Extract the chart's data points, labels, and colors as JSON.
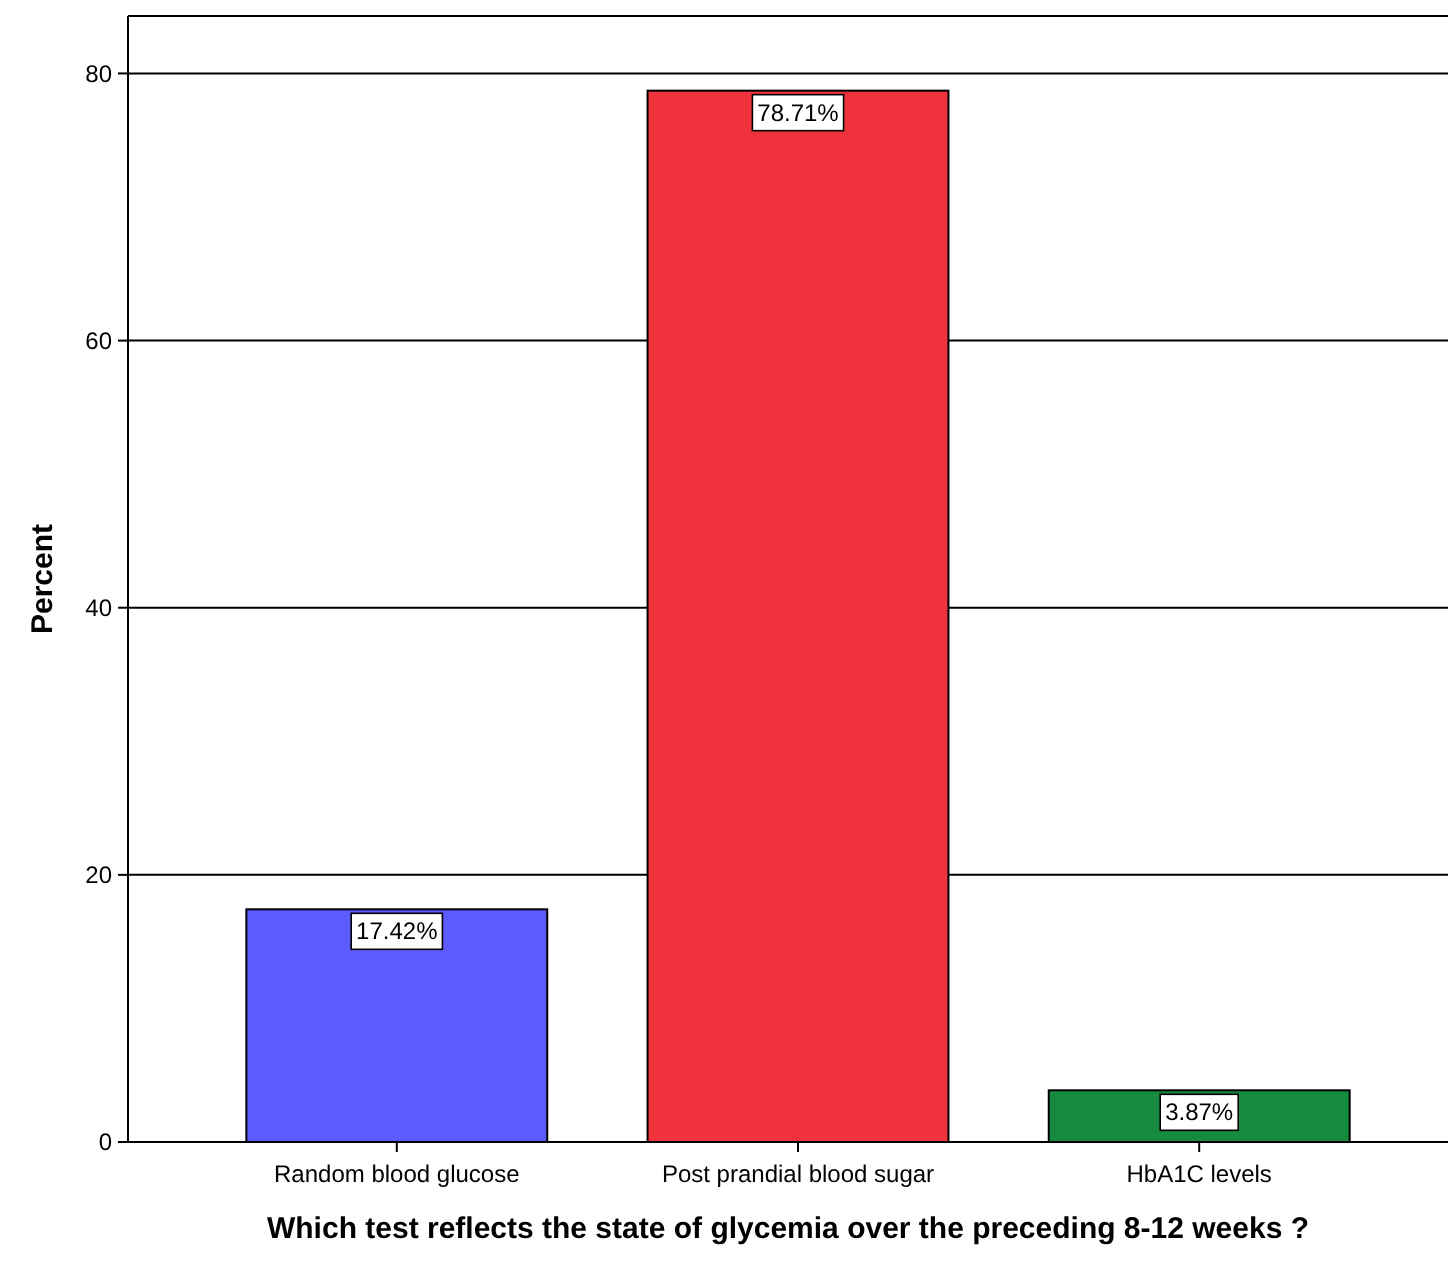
{
  "chart_data": {
    "type": "bar",
    "xlabel": "Which test reflects the state of glycemia over the preceding 8-12 weeks ?",
    "ylabel": "Percent",
    "categories": [
      "Random blood glucose",
      "Post prandial blood sugar",
      "HbA1C levels"
    ],
    "values": [
      17.42,
      78.71,
      3.87
    ],
    "colors": [
      "#5b5bff",
      "#f0323c",
      "#168a3e"
    ],
    "value_labels": [
      "17.42%",
      "78.71%",
      "3.87%"
    ],
    "ylim": [
      0,
      84.3
    ],
    "yticks": [
      0,
      20,
      40,
      60,
      80
    ],
    "grid": "y"
  }
}
